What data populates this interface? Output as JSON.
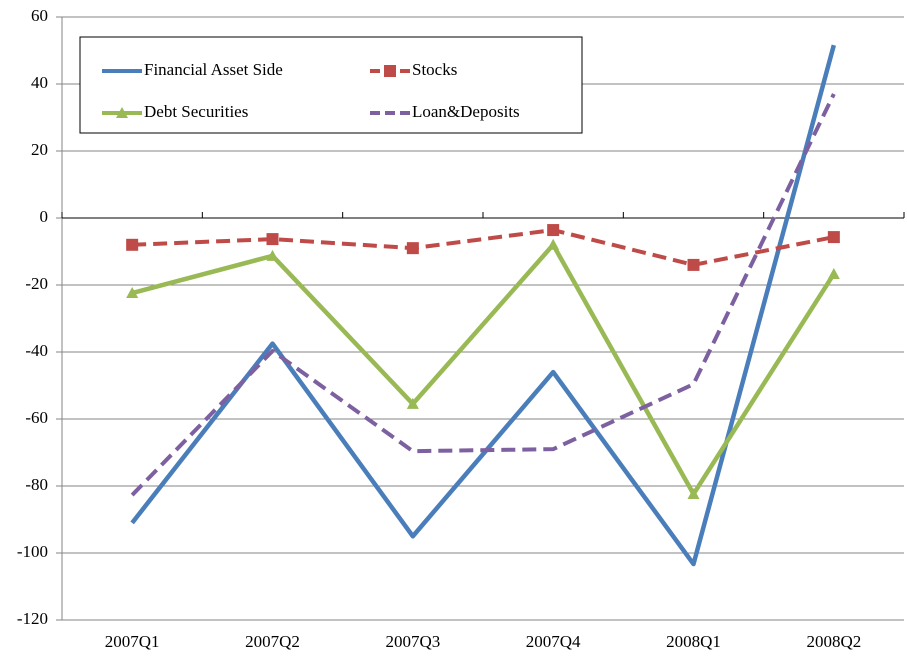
{
  "chart_data": {
    "type": "line",
    "categories": [
      "2007Q1",
      "2007Q2",
      "2007Q3",
      "2007Q4",
      "2008Q1",
      "2008Q2"
    ],
    "series": [
      {
        "name": "Financial Asset Side",
        "color": "#4a7ebb",
        "dash": false,
        "marker": "none",
        "values": [
          -91,
          -37.5,
          -95,
          -46,
          -103.3,
          51.6
        ]
      },
      {
        "name": "Stocks",
        "color": "#be4b48",
        "dash": true,
        "marker": "square",
        "values": [
          -8,
          -6.3,
          -9,
          -3.6,
          -14,
          -5.7
        ]
      },
      {
        "name": "Debt Securities",
        "color": "#98b954",
        "dash": false,
        "marker": "triangle",
        "values": [
          -22.4,
          -11.3,
          -55.5,
          -8,
          -82.4,
          -16.7
        ]
      },
      {
        "name": "Loan&Deposits",
        "color": "#7d60a0",
        "dash": true,
        "marker": "none",
        "values": [
          -82.7,
          -39.7,
          -69.6,
          -69,
          -49.6,
          37
        ]
      }
    ],
    "ylim": [
      -120,
      60
    ],
    "yticks": [
      -120,
      -100,
      -80,
      -60,
      -40,
      -20,
      0,
      20,
      40,
      60
    ],
    "grid": true,
    "legend": "upper left"
  }
}
